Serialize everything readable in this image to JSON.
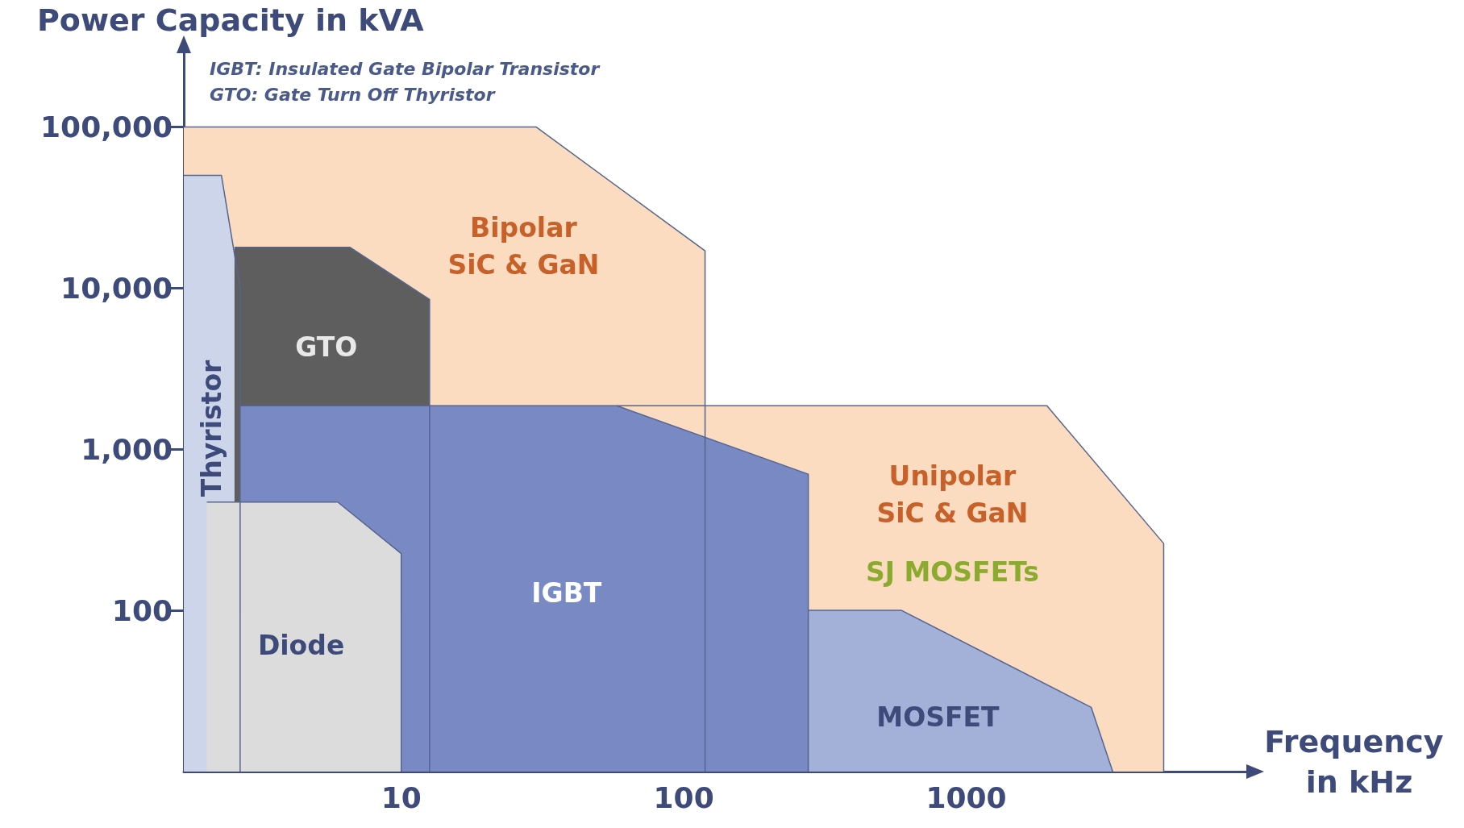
{
  "chart_data": {
    "type": "area",
    "ylabel": "Power Capacity in kVA",
    "xlabel": "Frequency in kHz",
    "log": "xy",
    "marker": "none",
    "xlim": [
      1.7,
      10000
    ],
    "ylim": [
      10,
      300000
    ],
    "xticks": [
      10,
      100,
      1000
    ],
    "yticks": [
      100,
      {
        "value": 1000,
        "label": "1,000"
      },
      {
        "value": 10000,
        "label": "10,000"
      },
      {
        "value": 100000,
        "label": "100,000"
      }
    ],
    "series": [
      {
        "name": "Bipolar SiC & GaN",
        "color": "#fbdcc0",
        "x": [
          1.7,
          30,
          119,
          119
        ],
        "values": [
          100000,
          100000,
          17000,
          10
        ]
      },
      {
        "name": "Unipolar SiC & GaN",
        "color": "#fbdcc0",
        "x": [
          58,
          1930,
          5000,
          5000
        ],
        "values": [
          1860,
          1860,
          260,
          10
        ]
      },
      {
        "name": "Thyristor",
        "color": "#cdd5ea",
        "x": [
          1.7,
          2.31,
          2.69,
          2.69
        ],
        "values": [
          50000,
          50000,
          10000,
          10
        ]
      },
      {
        "name": "GTO",
        "color": "#5e5e5e",
        "x": [
          2.57,
          6.58,
          12.6,
          12.6
        ],
        "values": [
          17900,
          17900,
          8500,
          10
        ]
      },
      {
        "name": "IGBT",
        "color": "#7889c4",
        "x": [
          2.69,
          58,
          276,
          276
        ],
        "values": [
          1860,
          1860,
          700,
          10
        ]
      },
      {
        "name": "Diode",
        "color": "#dcdcdc",
        "x": [
          2.05,
          5.96,
          10,
          10
        ],
        "values": [
          470,
          470,
          225,
          10
        ]
      },
      {
        "name": "MOSFET",
        "color": "#a3b0d8",
        "x": [
          276,
          590,
          2770,
          3300
        ],
        "values": [
          100,
          100,
          25,
          10
        ]
      }
    ],
    "annotations": [
      "IGBT: Insulated Gate Bipolar Transistor",
      "GTO: Gate Turn Off Thyristor",
      "SJ MOSFETs"
    ]
  }
}
